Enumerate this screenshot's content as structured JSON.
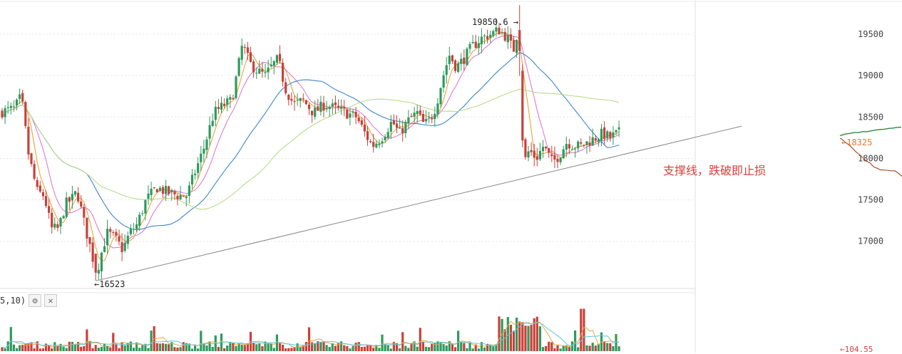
{
  "chart_data": {
    "type": "candlestick",
    "y_ticks": [
      "19500",
      "19000",
      "18500",
      "18000",
      "17500",
      "17000"
    ],
    "tick_values": [
      19500,
      19000,
      18500,
      18000,
      17500,
      17000
    ],
    "ylim": [
      16430,
      19870
    ],
    "high_label": "19850.6 →",
    "high_value": 19850.6,
    "low_label": "←16523",
    "low_value": 16523,
    "last_price_label": "←18325",
    "last_price": 18325,
    "annotation": "支撑线，跌破即止损",
    "volume_indicator_label": "5,10)",
    "volume_last_label": "←104.55",
    "colors": {
      "up": "#2e9a5c",
      "down": "#c8413a",
      "ma5": "#e8a53a",
      "ma10": "#e07bd0",
      "ma30": "#3d86c8",
      "ma60": "#b9dc8a",
      "support_line": "#888888",
      "depth_bid": "#2e8b3a",
      "depth_ask": "#a0522d",
      "annotation": "#d9413a"
    },
    "support_line": {
      "from_price": 16523,
      "to_price": 18390
    },
    "volume_ylim": [
      0,
      200
    ]
  },
  "toolbar": {
    "settings_icon": "gear-icon",
    "close_icon": "close-icon",
    "settings_glyph": "⚙",
    "close_glyph": "✕"
  }
}
